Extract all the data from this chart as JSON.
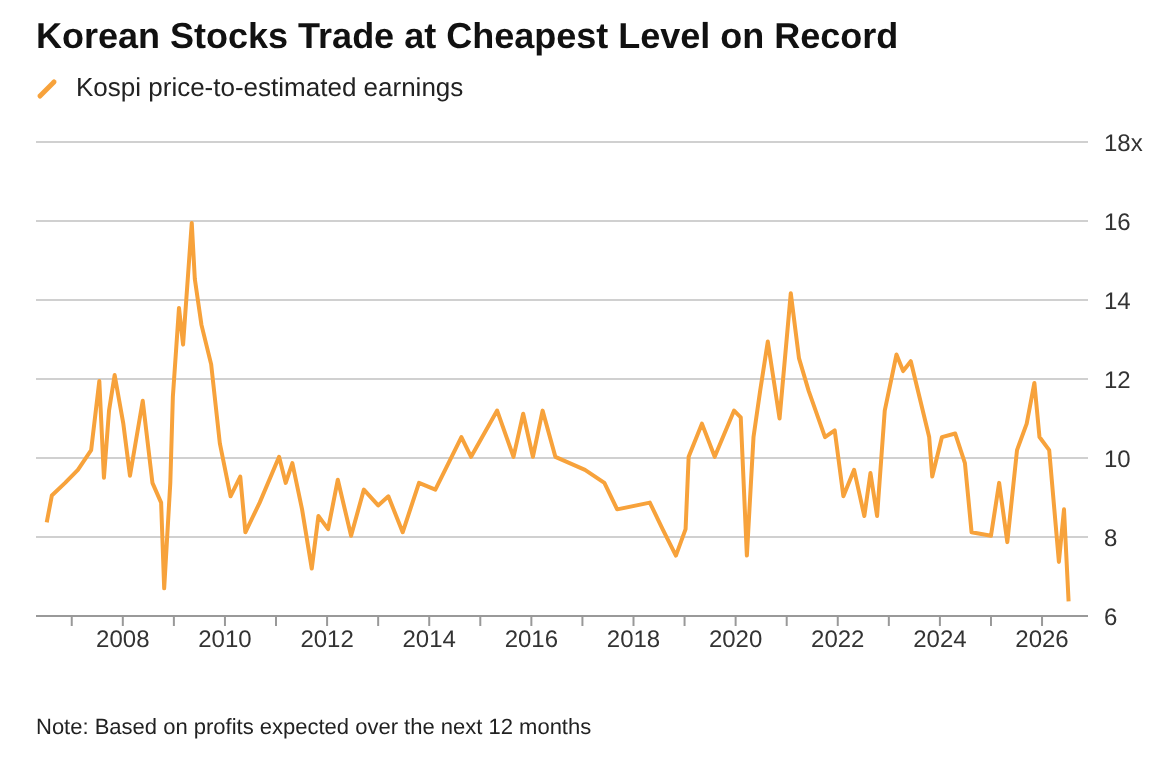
{
  "chart_data": {
    "type": "line",
    "title": "Korean Stocks Trade at Cheapest Level on Record",
    "annotations": [
      "Note: Based on profits expected over the next 12 months"
    ],
    "legend": "top left",
    "grid": "y",
    "marker": "none",
    "line_style": "solid",
    "xlim": [
      2006.3,
      2026.9
    ],
    "xticks": [
      {
        "value": 2007,
        "label": null
      },
      2008,
      {
        "value": 2009,
        "label": null
      },
      2010,
      {
        "value": 2011,
        "label": null
      },
      2012,
      {
        "value": 2013,
        "label": null
      },
      2014,
      {
        "value": 2015,
        "label": null
      },
      2016,
      {
        "value": 2017,
        "label": null
      },
      2018,
      {
        "value": 2019,
        "label": null
      },
      2020,
      {
        "value": 2021,
        "label": null
      },
      2022,
      {
        "value": 2023,
        "label": null
      },
      2024,
      {
        "value": 2025,
        "label": null
      },
      2026
    ],
    "ylim": [
      6,
      18
    ],
    "yticks": [
      6,
      8,
      10,
      12,
      14,
      16,
      {
        "value": 18,
        "label": "18x"
      }
    ],
    "x": [
      2006.51,
      2006.61,
      2006.87,
      2007.12,
      2007.38,
      2007.54,
      2007.63,
      2007.73,
      2007.84,
      2008.01,
      2008.14,
      2008.39,
      2008.58,
      2008.75,
      2008.81,
      2008.93,
      2008.98,
      2009.1,
      2009.18,
      2009.35,
      2009.41,
      2009.54,
      2009.73,
      2009.9,
      2010.11,
      2010.3,
      2010.4,
      2010.68,
      2011.06,
      2011.19,
      2011.32,
      2011.51,
      2011.7,
      2011.83,
      2012.02,
      2012.21,
      2012.47,
      2012.72,
      2013.0,
      2013.2,
      2013.48,
      2013.8,
      2014.12,
      2014.63,
      2014.82,
      2015.33,
      2015.65,
      2015.84,
      2016.03,
      2016.22,
      2016.47,
      2017.05,
      2017.43,
      2017.68,
      2018.32,
      2018.57,
      2018.83,
      2019.02,
      2019.08,
      2019.34,
      2019.59,
      2019.97,
      2020.1,
      2020.22,
      2020.35,
      2020.48,
      2020.63,
      2020.86,
      2021.08,
      2021.24,
      2021.43,
      2021.75,
      2021.94,
      2022.11,
      2022.32,
      2022.52,
      2022.64,
      2022.77,
      2022.92,
      2023.15,
      2023.28,
      2023.43,
      2023.79,
      2023.85,
      2024.04,
      2024.3,
      2024.49,
      2024.62,
      2025.0,
      2025.16,
      2025.32,
      2025.51,
      2025.7,
      2025.85,
      2025.95,
      2026.14,
      2026.33,
      2026.43,
      2026.52
    ],
    "series": [
      {
        "name": "Kospi price-to-estimated earnings",
        "color": "#f7a23b",
        "values": [
          8.37,
          9.05,
          9.37,
          9.7,
          10.2,
          11.95,
          9.5,
          11.2,
          12.1,
          10.87,
          9.55,
          11.45,
          9.37,
          8.87,
          6.7,
          9.37,
          11.55,
          13.8,
          12.87,
          15.95,
          14.53,
          13.37,
          12.37,
          10.37,
          9.03,
          9.53,
          8.12,
          8.87,
          10.03,
          9.37,
          9.87,
          8.7,
          7.2,
          8.53,
          8.2,
          9.45,
          8.03,
          9.2,
          8.8,
          9.03,
          8.12,
          9.37,
          9.2,
          10.53,
          10.03,
          11.2,
          10.03,
          11.12,
          10.03,
          11.2,
          10.03,
          9.7,
          9.37,
          8.7,
          8.87,
          8.2,
          7.53,
          8.2,
          10.03,
          10.87,
          10.03,
          11.2,
          11.03,
          7.53,
          10.53,
          11.7,
          12.95,
          11.0,
          14.17,
          12.53,
          11.7,
          10.53,
          10.7,
          9.03,
          9.7,
          8.53,
          9.62,
          8.53,
          11.2,
          12.62,
          12.2,
          12.45,
          10.53,
          9.53,
          10.53,
          10.62,
          9.87,
          8.12,
          8.03,
          9.37,
          7.87,
          10.2,
          10.87,
          11.9,
          10.53,
          10.2,
          7.37,
          8.7,
          6.37
        ]
      }
    ]
  }
}
